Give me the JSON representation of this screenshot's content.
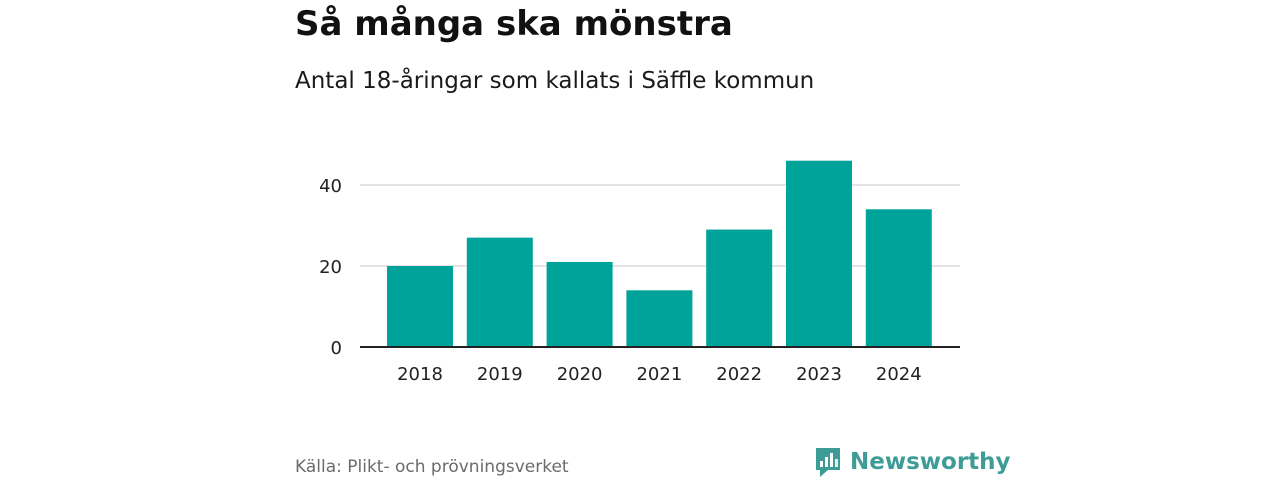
{
  "title": "Så många ska mönstra",
  "subtitle": "Antal 18-åringar som kallats i Säffle kommun",
  "source": "Källa: Plikt- och prövningsverket",
  "brand": {
    "name": "Newsworthy",
    "color": "#3e9c97",
    "icon": "bar-chart-speech-bubble-icon"
  },
  "colors": {
    "bar": "#00a39a",
    "grid": "#dcdcdc",
    "axis": "#222222"
  },
  "chart_data": {
    "type": "bar",
    "title": "Så många ska mönstra",
    "subtitle": "Antal 18-åringar som kallats i Säffle kommun",
    "categories": [
      "2018",
      "2019",
      "2020",
      "2021",
      "2022",
      "2023",
      "2024"
    ],
    "values": [
      20,
      27,
      21,
      14,
      29,
      46,
      34
    ],
    "xlabel": "",
    "ylabel": "",
    "ylim": [
      0,
      50
    ],
    "yticks": [
      0,
      20,
      40
    ],
    "grid": true,
    "legend": "none"
  }
}
